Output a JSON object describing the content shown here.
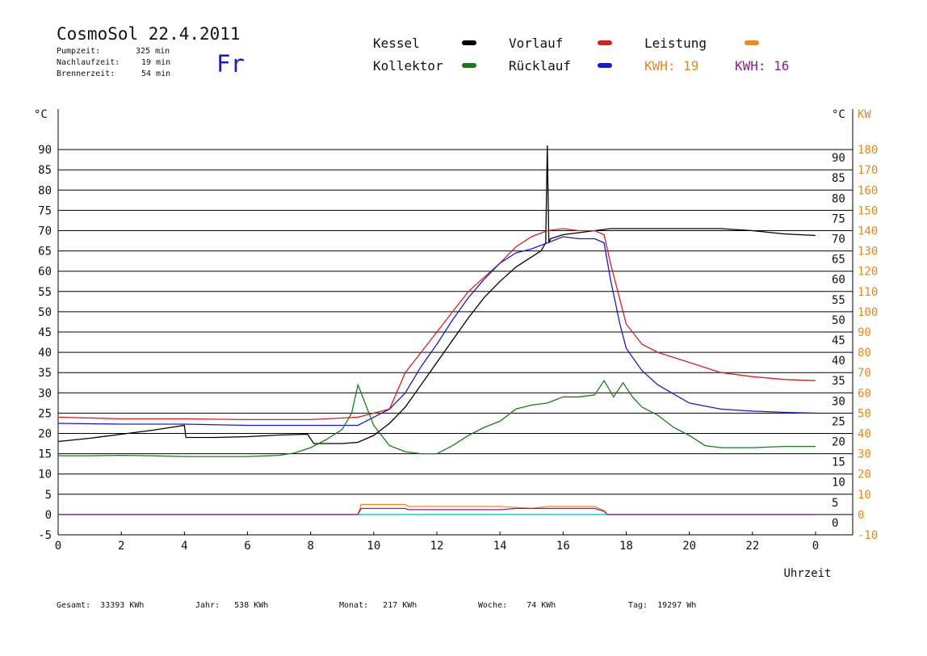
{
  "header": {
    "title": "CosmoSol 22.4.2011",
    "weekday": "Fr",
    "stats": [
      {
        "label": "Pumpzeit:",
        "value": "325 min"
      },
      {
        "label": "Nachlaufzeit:",
        "value": "19 min"
      },
      {
        "label": "Brennerzeit:",
        "value": "54 min"
      }
    ]
  },
  "legend": {
    "items": [
      {
        "name": "Kessel",
        "color": "#000000"
      },
      {
        "name": "Kollektor",
        "color": "#1a7a1a"
      },
      {
        "name": "Vorlauf",
        "color": "#d42020"
      },
      {
        "name": "Rücklauf",
        "color": "#1a1acc"
      },
      {
        "name": "Leistung",
        "color": "#f08a1e"
      }
    ],
    "kwh_label_1": "KWH: 19",
    "kwh_label_2": "KWH: 16"
  },
  "footer": {
    "gesamt": "Gesamt:  33393 KWh",
    "jahr": "Jahr:   538 KWh",
    "monat": "Monat:   217 KWh",
    "woche": "Woche:    74 KWh",
    "tag": "Tag:  19297 Wh"
  },
  "chart_data": {
    "type": "line",
    "xlabel": "Uhrzeit",
    "ylabel_left": "°C",
    "ylabel_right_1": "°C",
    "ylabel_right_2": "KW",
    "xlim": [
      0,
      24
    ],
    "ylim": [
      -5,
      95
    ],
    "ylim_right_kw": [
      -10,
      190
    ],
    "x_ticks": [
      "0",
      "2",
      "4",
      "6",
      "8",
      "10",
      "12",
      "14",
      "16",
      "18",
      "20",
      "22",
      "0"
    ],
    "y_ticks_left": [
      "-5",
      "0",
      "5",
      "10",
      "15",
      "20",
      "25",
      "30",
      "35",
      "40",
      "45",
      "50",
      "55",
      "60",
      "65",
      "70",
      "75",
      "80",
      "85",
      "90"
    ],
    "y_ticks_right_c": [
      "0",
      "5",
      "10",
      "15",
      "20",
      "25",
      "30",
      "35",
      "40",
      "45",
      "50",
      "55",
      "60",
      "65",
      "70",
      "75",
      "80",
      "85",
      "90"
    ],
    "y_ticks_right_kw": [
      "-10",
      "0",
      "10",
      "20",
      "30",
      "40",
      "50",
      "60",
      "70",
      "80",
      "90",
      "100",
      "110",
      "120",
      "130",
      "140",
      "150",
      "160",
      "170",
      "180"
    ],
    "grid": true,
    "series": [
      {
        "name": "Kessel",
        "color": "#000000",
        "x": [
          0,
          1,
          2,
          3,
          4,
          4.05,
          5,
          6,
          7,
          7.9,
          8.1,
          9,
          9.5,
          10,
          10.5,
          11,
          11.5,
          12,
          12.5,
          13,
          13.5,
          14,
          14.5,
          15,
          15.3,
          15.45,
          15.5,
          15.55,
          15.6,
          16,
          16.5,
          17,
          17.5,
          18,
          19,
          20,
          21,
          22,
          23,
          24
        ],
        "y": [
          18,
          18.8,
          19.8,
          20.8,
          22,
          19,
          19,
          19.2,
          19.6,
          19.8,
          17.5,
          17.5,
          17.8,
          19.5,
          22.5,
          26.5,
          32,
          37.5,
          43,
          48.5,
          53.5,
          57.5,
          61,
          63.5,
          65,
          67,
          91,
          67,
          68,
          69,
          69.5,
          70,
          70.5,
          70.5,
          70.5,
          70.5,
          70.5,
          70,
          69.2,
          68.8
        ]
      },
      {
        "name": "Vorlauf",
        "color": "#d42020",
        "x": [
          0,
          2,
          4,
          6,
          8,
          9,
          9.5,
          10,
          10.5,
          11,
          11.5,
          12,
          12.5,
          13,
          13.5,
          14,
          14.5,
          15,
          15.5,
          16,
          16.5,
          17,
          17.3,
          17.5,
          17.8,
          18,
          18.5,
          19,
          20,
          21,
          22,
          23,
          24
        ],
        "y": [
          24,
          23.6,
          23.6,
          23.4,
          23.4,
          23.8,
          24,
          25,
          26,
          35,
          40,
          45,
          50,
          55,
          58.5,
          62,
          66,
          68.5,
          70,
          70.5,
          70,
          70,
          69,
          62,
          53,
          47,
          42,
          40,
          37.5,
          35,
          34,
          33.3,
          33
        ]
      },
      {
        "name": "Rücklauf",
        "color": "#1a1acc",
        "x": [
          0,
          2,
          4,
          6,
          8,
          9,
          9.5,
          10,
          10.5,
          11,
          11.5,
          12,
          12.5,
          13,
          13.5,
          14,
          14.5,
          15,
          15.5,
          16,
          16.5,
          17,
          17.3,
          17.5,
          17.8,
          18,
          18.5,
          19,
          20,
          21,
          22,
          23,
          24
        ],
        "y": [
          22.5,
          22.3,
          22.3,
          22,
          22,
          22,
          22,
          24,
          26,
          30,
          36.5,
          42,
          48,
          53.5,
          58,
          62,
          64.5,
          65.5,
          67,
          68.5,
          68,
          68,
          67,
          58,
          47,
          41,
          35.5,
          32,
          27.5,
          26,
          25.5,
          25.2,
          25
        ]
      },
      {
        "name": "Kollektor",
        "color": "#1a7a1a",
        "x": [
          0,
          1,
          2,
          3,
          4,
          5,
          6,
          7,
          7.5,
          8,
          8.5,
          9,
          9.3,
          9.5,
          10,
          10.5,
          11,
          11.5,
          12,
          12.5,
          13,
          13.5,
          14,
          14.5,
          15,
          15.5,
          16,
          16.5,
          17,
          17.3,
          17.6,
          17.9,
          18.2,
          18.5,
          19,
          19.5,
          20,
          20.5,
          21,
          22,
          23,
          24
        ],
        "y": [
          14.5,
          14.5,
          14.6,
          14.5,
          14.3,
          14.3,
          14.3,
          14.6,
          15.2,
          16.5,
          18.5,
          21,
          25,
          32,
          22,
          17,
          15.5,
          15,
          15,
          17,
          19.5,
          21.5,
          23,
          26,
          27,
          27.5,
          29,
          29,
          29.5,
          33,
          29,
          32.5,
          29,
          26.5,
          24.5,
          21.5,
          19.5,
          17,
          16.5,
          16.5,
          16.8,
          16.8
        ]
      },
      {
        "name": "Leistung",
        "color": "#f08a1e",
        "x": [
          0,
          9.5,
          9.6,
          10,
          11,
          11.1,
          12,
          13,
          14,
          15,
          15.5,
          16,
          17,
          17.3,
          17.4,
          24
        ],
        "y": [
          0,
          0,
          2.5,
          2.5,
          2.5,
          2,
          2,
          2,
          2,
          1.5,
          2,
          2,
          2,
          1,
          0,
          0
        ]
      },
      {
        "name": "KWH 16",
        "color": "#8b1f8b",
        "x": [
          0,
          9.5,
          9.6,
          10,
          11,
          11.1,
          12,
          14,
          14.5,
          15,
          15.5,
          16,
          17,
          17.3,
          17.4,
          24
        ],
        "y": [
          0,
          0,
          1.5,
          1.5,
          1.5,
          1.2,
          1.2,
          1.2,
          1.5,
          1.5,
          1.5,
          1.5,
          1.5,
          0.8,
          0,
          0
        ]
      }
    ]
  }
}
